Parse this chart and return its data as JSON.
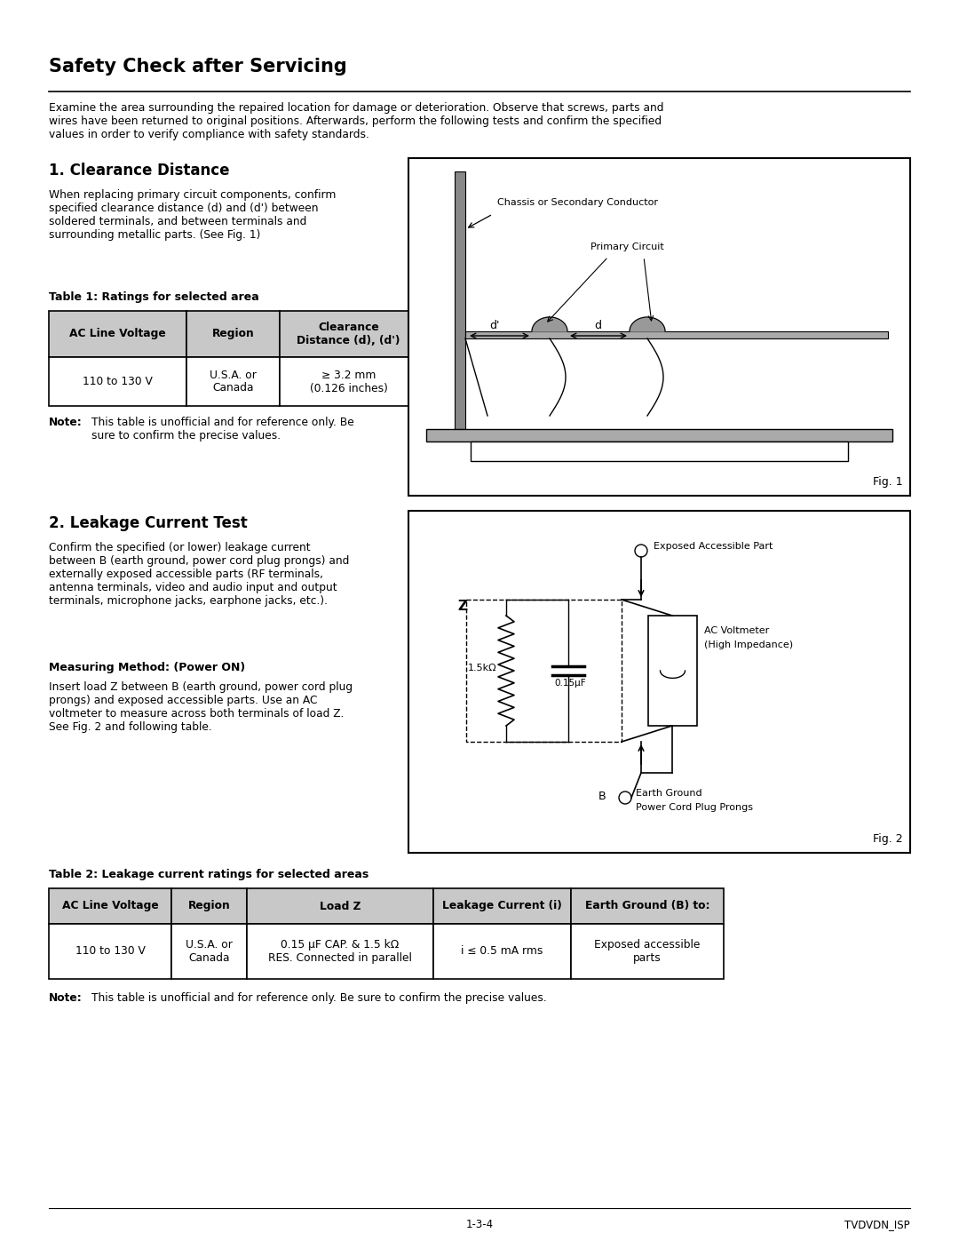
{
  "title": "Safety Check after Servicing",
  "intro_text": "Examine the area surrounding the repaired location for damage or deterioration. Observe that screws, parts and\nwires have been returned to original positions. Afterwards, perform the following tests and confirm the specified\nvalues in order to verify compliance with safety standards.",
  "section1_title": "1. Clearance Distance",
  "section1_text": "When replacing primary circuit components, confirm\nspecified clearance distance (d) and (d') between\nsoldered terminals, and between terminals and\nsurrounding metallic parts. (See Fig. 1)",
  "table1_title": "Table 1: Ratings for selected area",
  "table1_headers": [
    "AC Line Voltage",
    "Region",
    "Clearance\nDistance (d), (d')"
  ],
  "table1_row": [
    "110 to 130 V",
    "U.S.A. or\nCanada",
    "≥ 3.2 mm\n(0.126 inches)"
  ],
  "section2_title": "2. Leakage Current Test",
  "section2_text": "Confirm the specified (or lower) leakage current\nbetween B (earth ground, power cord plug prongs) and\nexternally exposed accessible parts (RF terminals,\nantenna terminals, video and audio input and output\nterminals, microphone jacks, earphone jacks, etc.).",
  "measuring_title": "Measuring Method: (Power ON)",
  "measuring_text": "Insert load Z between B (earth ground, power cord plug\nprongs) and exposed accessible parts. Use an AC\nvoltmeter to measure across both terminals of load Z.\nSee Fig. 2 and following table.",
  "table2_title": "Table 2: Leakage current ratings for selected areas",
  "table2_headers": [
    "AC Line Voltage",
    "Region",
    "Load Z",
    "Leakage Current (i)",
    "Earth Ground (B) to:"
  ],
  "table2_row": [
    "110 to 130 V",
    "U.S.A. or\nCanada",
    "0.15 μF CAP. & 1.5 kΩ\nRES. Connected in parallel",
    "i ≤ 0.5 mA rms",
    "Exposed accessible\nparts"
  ],
  "footer_left": "1-3-4",
  "footer_right": "TVDVDN_ISP",
  "bg_color": "#ffffff",
  "text_color": "#000000",
  "table_header_bg": "#c8c8c8",
  "table_border_color": "#000000"
}
